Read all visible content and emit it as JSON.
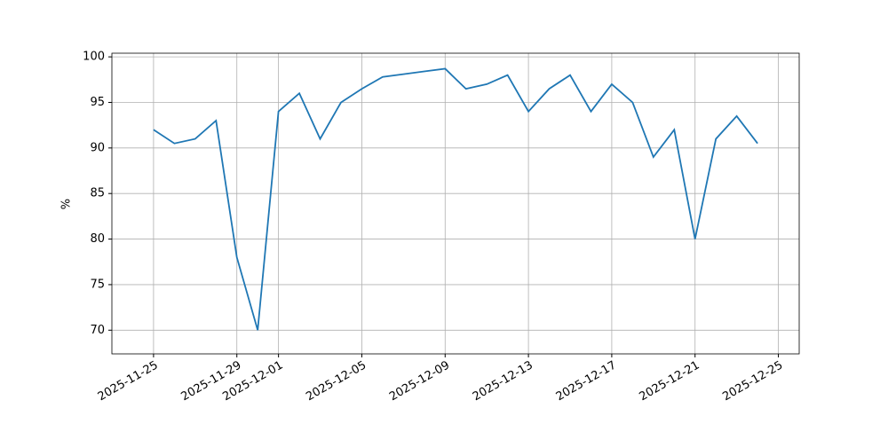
{
  "chart_data": {
    "type": "line",
    "ylabel": "%",
    "x": [
      "2025-11-25",
      "2025-11-26",
      "2025-11-27",
      "2025-11-28",
      "2025-11-29",
      "2025-11-30",
      "2025-12-01",
      "2025-12-02",
      "2025-12-03",
      "2025-12-04",
      "2025-12-05",
      "2025-12-06",
      "2025-12-07",
      "2025-12-08",
      "2025-12-09",
      "2025-12-10",
      "2025-12-11",
      "2025-12-12",
      "2025-12-13",
      "2025-12-14",
      "2025-12-15",
      "2025-12-16",
      "2025-12-17",
      "2025-12-18",
      "2025-12-19",
      "2025-12-20",
      "2025-12-21",
      "2025-12-22",
      "2025-12-23",
      "2025-12-24"
    ],
    "values": [
      92,
      90.5,
      91,
      93,
      78,
      70,
      94,
      96,
      91,
      95,
      96.5,
      97.8,
      98.1,
      98.4,
      98.7,
      96.5,
      97,
      98,
      94,
      96.5,
      98,
      94,
      97,
      95,
      89,
      92,
      80,
      91,
      93.5,
      90.5
    ],
    "color": "#1f77b4",
    "xlim": [
      "2025-11-23",
      "2025-12-26"
    ],
    "xticks": [
      "2025-11-25",
      "2025-11-29",
      "2025-12-01",
      "2025-12-05",
      "2025-12-09",
      "2025-12-13",
      "2025-12-17",
      "2025-12-21",
      "2025-12-25"
    ],
    "ylim": [
      67.4,
      100.4
    ],
    "yticks": [
      70,
      75,
      80,
      85,
      90,
      95,
      100
    ],
    "grid": true
  }
}
